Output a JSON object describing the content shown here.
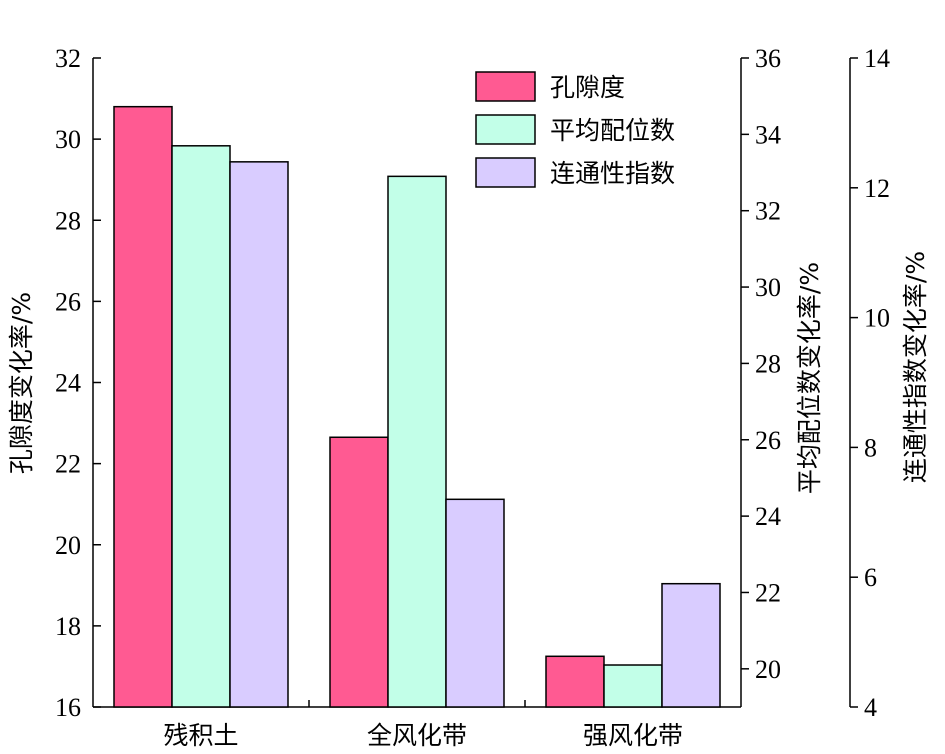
{
  "chart_data": {
    "type": "bar",
    "categories": [
      "残积土",
      "全风化带",
      "强风化带"
    ],
    "axes": {
      "left": {
        "label": "孔隙度变化率/%",
        "ylim": [
          16,
          32
        ],
        "ticks": [
          16,
          18,
          20,
          22,
          24,
          26,
          28,
          30,
          32
        ]
      },
      "right1": {
        "label": "平均配位数变化率/%",
        "ylim": [
          19,
          36
        ],
        "ticks": [
          20,
          22,
          24,
          26,
          28,
          30,
          32,
          34,
          36
        ]
      },
      "right2": {
        "label": "连通性指数变化率/%",
        "ylim": [
          4,
          14
        ],
        "ticks": [
          4,
          6,
          8,
          10,
          12,
          14
        ]
      }
    },
    "series": [
      {
        "name": "孔隙度",
        "axis": "left",
        "color": "#FF5A92",
        "values": [
          30.8,
          22.65,
          17.25
        ]
      },
      {
        "name": "平均配位数",
        "axis": "right1",
        "color": "#C2FFE8",
        "values": [
          33.7,
          32.9,
          20.1
        ]
      },
      {
        "name": "连通性指数",
        "axis": "right2",
        "color": "#D9CCFF",
        "values": [
          12.4,
          7.2,
          5.9
        ]
      }
    ],
    "legend_position": "top-right",
    "grid": false
  }
}
